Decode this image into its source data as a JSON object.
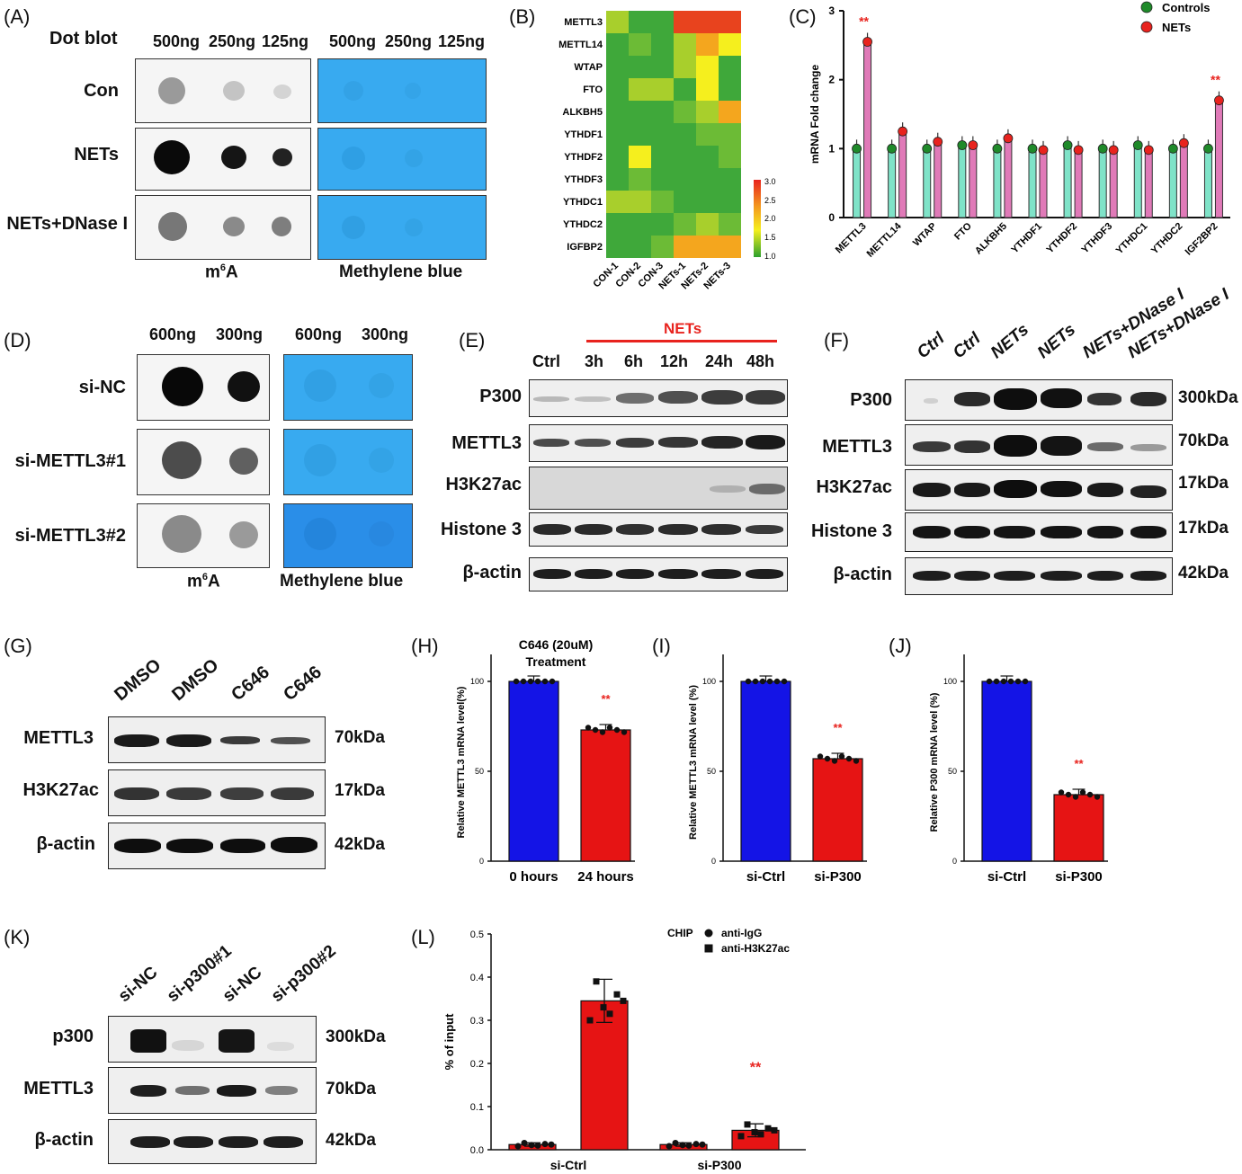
{
  "panels": {
    "A": {
      "label": "(A)",
      "title": "Dot blot",
      "m6a_cols": [
        "500ng",
        "250ng",
        "125ng"
      ],
      "mb_cols": [
        "500ng",
        "250ng",
        "125ng"
      ],
      "rows": [
        "Con",
        "NETs",
        "NETs+DNase I"
      ],
      "footer_m6a_base": "m",
      "footer_m6a_sup": "6",
      "footer_m6a_rest": "A",
      "footer_mb": "Methylene blue"
    },
    "B": {
      "label": "(B)",
      "genes": [
        "METTL3",
        "METTL14",
        "WTAP",
        "FTO",
        "ALKBH5",
        "YTHDF1",
        "YTHDF2",
        "YTHDF3",
        "YTHDC1",
        "YTHDC2",
        "IGFBP2"
      ],
      "samples": [
        "CON-1",
        "CON-2",
        "CON-3",
        "NETs-1",
        "NETs-2",
        "NETs-3"
      ],
      "scale": [
        "3.0",
        "2.5",
        "2.0",
        "1.5",
        "1.0"
      ]
    },
    "D": {
      "label": "(D)",
      "m6a_cols": [
        "600ng",
        "300ng"
      ],
      "mb_cols": [
        "600ng",
        "300ng"
      ],
      "rows": [
        "si-NC",
        "si-METTL3#1",
        "si-METTL3#2"
      ],
      "footer_m6a_base": "m",
      "footer_m6a_sup": "6",
      "footer_m6a_rest": "A",
      "footer_mb": "Methylene blue"
    },
    "E": {
      "label": "(E)",
      "header": "NETs",
      "cols": [
        "Ctrl",
        "3h",
        "6h",
        "12h",
        "24h",
        "48h"
      ],
      "rows": [
        "P300",
        "METTL3",
        "H3K27ac",
        "Histone 3",
        "β-actin"
      ]
    },
    "F": {
      "label": "(F)",
      "cols": [
        "Ctrl",
        "Ctrl",
        "NETs",
        "NETs",
        "NETs+DNase I",
        "NETs+DNase I"
      ],
      "rows": [
        "P300",
        "METTL3",
        "H3K27ac",
        "Histone 3",
        "β-actin"
      ],
      "kda": [
        "300kDa",
        "70kDa",
        "17kDa",
        "17kDa",
        "42kDa"
      ]
    },
    "G": {
      "label": "(G)",
      "cols": [
        "DMSO",
        "DMSO",
        "C646",
        "C646"
      ],
      "rows": [
        "METTL3",
        "H3K27ac",
        "β-actin"
      ],
      "kda": [
        "70kDa",
        "17kDa",
        "42kDa"
      ]
    },
    "K": {
      "label": "(K)",
      "cols": [
        "si-NC",
        "si-p300#1",
        "si-NC",
        "si-p300#2"
      ],
      "rows": [
        "p300",
        "METTL3",
        "β-actin"
      ],
      "kda": [
        "300kDa",
        "70kDa",
        "42kDa"
      ]
    },
    "C_label": "(C)",
    "H_label": "(H)",
    "I_label": "(I)",
    "J_label": "(J)",
    "L_label": "(L)",
    "sig_mark": "**"
  },
  "chart_data": [
    {
      "id": "C",
      "type": "bar",
      "ylabel": "mRNA Fold change",
      "ylim": [
        0,
        3
      ],
      "yticks": [
        "0",
        "1",
        "2",
        "3"
      ],
      "categories": [
        "METTL3",
        "METTL14",
        "WTAP",
        "FTO",
        "ALKBH5",
        "YTHDF1",
        "YTHDF2",
        "YTHDF3",
        "YTHDC1",
        "YTHDC2",
        "IGF2BP2"
      ],
      "series": [
        {
          "name": "Controls",
          "color": "#7fe3c8",
          "dot_color": "#1f8a2a",
          "values": [
            1.0,
            1.0,
            1.0,
            1.05,
            1.0,
            1.0,
            1.05,
            1.0,
            1.05,
            1.0,
            1.0
          ]
        },
        {
          "name": "NETs",
          "color": "#e07ab8",
          "dot_color": "#e8231e",
          "values": [
            2.55,
            1.25,
            1.1,
            1.05,
            1.15,
            0.98,
            0.98,
            0.98,
            0.98,
            1.08,
            1.7
          ]
        }
      ],
      "significant": [
        "METTL3",
        "IGF2BP2"
      ],
      "legend": "top-right"
    },
    {
      "id": "H",
      "type": "bar",
      "title": "C646 (20uM)",
      "subtitle": "Treatment",
      "ylabel": "Relative METTL3 mRNA level(%)",
      "ylim": [
        0,
        120
      ],
      "yticks": [
        "0",
        "50",
        "100"
      ],
      "categories": [
        "0 hours",
        "24 hours"
      ],
      "values": [
        100,
        73
      ],
      "colors": [
        "#1414e6",
        "#e61414"
      ],
      "significant": [
        "24 hours"
      ]
    },
    {
      "id": "I",
      "type": "bar",
      "ylabel": "Relative METTL3 mRNA level (%)",
      "ylim": [
        0,
        120
      ],
      "yticks": [
        "0",
        "50",
        "100"
      ],
      "categories": [
        "si-Ctrl",
        "si-P300"
      ],
      "values": [
        100,
        57
      ],
      "colors": [
        "#1414e6",
        "#e61414"
      ],
      "significant": [
        "si-P300"
      ]
    },
    {
      "id": "J",
      "type": "bar",
      "ylabel": "Relative P300 mRNA level (%)",
      "ylim": [
        0,
        120
      ],
      "yticks": [
        "0",
        "50",
        "100"
      ],
      "categories": [
        "si-Ctrl",
        "si-P300"
      ],
      "values": [
        100,
        37
      ],
      "colors": [
        "#1414e6",
        "#e61414"
      ],
      "significant": [
        "si-P300"
      ]
    },
    {
      "id": "L",
      "type": "bar",
      "ylabel": "% of input",
      "ylim": [
        0,
        0.5
      ],
      "yticks": [
        "0.0",
        "0.1",
        "0.2",
        "0.3",
        "0.4",
        "0.5"
      ],
      "categories": [
        "si-Ctrl",
        "si-P300"
      ],
      "legend_title": "CHIP",
      "series": [
        {
          "name": "anti-IgG",
          "color": "#e61414",
          "values": [
            0.012,
            0.012
          ]
        },
        {
          "name": "anti-H3K27ac",
          "color": "#e61414",
          "values": [
            0.345,
            0.045
          ]
        }
      ],
      "significant": [
        "si-P300"
      ]
    }
  ]
}
